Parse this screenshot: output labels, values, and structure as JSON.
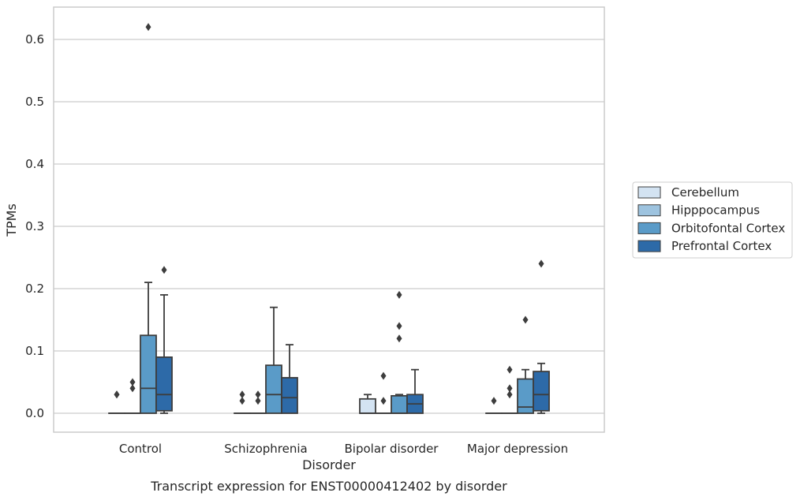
{
  "chart_data": {
    "type": "boxplot",
    "title": "Transcript expression for ENST00000412402 by disorder",
    "xlabel": "Disorder",
    "ylabel": "TPMs",
    "ylim": [
      -0.03,
      0.65
    ],
    "yticks": [
      0.0,
      0.1,
      0.2,
      0.3,
      0.4,
      0.5,
      0.6
    ],
    "ytick_labels": [
      "0.0",
      "0.1",
      "0.2",
      "0.3",
      "0.4",
      "0.5",
      "0.6"
    ],
    "grid": true,
    "legend_position": "right",
    "categories": [
      "Control",
      "Schizophrenia",
      "Bipolar disorder",
      "Major depression"
    ],
    "series": [
      {
        "name": "Cerebellum",
        "color": "#d3e3f2",
        "boxes": [
          {
            "q1": 0,
            "median": 0,
            "q3": 0,
            "whislo": 0,
            "whishi": 0,
            "fliers": [
              0.03,
              0.03
            ]
          },
          {
            "q1": 0,
            "median": 0,
            "q3": 0,
            "whislo": 0,
            "whishi": 0,
            "fliers": [
              0.02,
              0.03
            ]
          },
          {
            "q1": 0,
            "median": 0,
            "q3": 0.023,
            "whislo": 0,
            "whishi": 0.03,
            "fliers": []
          },
          {
            "q1": 0,
            "median": 0,
            "q3": 0,
            "whislo": 0,
            "whishi": 0,
            "fliers": [
              0.02
            ]
          }
        ]
      },
      {
        "name": "Hipppocampus",
        "color": "#9dc3df",
        "boxes": [
          {
            "q1": 0,
            "median": 0,
            "q3": 0,
            "whislo": 0,
            "whishi": 0,
            "fliers": [
              0.04,
              0.05
            ]
          },
          {
            "q1": 0,
            "median": 0,
            "q3": 0,
            "whislo": 0,
            "whishi": 0,
            "fliers": [
              0.02,
              0.03
            ]
          },
          {
            "q1": 0,
            "median": 0,
            "q3": 0,
            "whislo": 0,
            "whishi": 0,
            "fliers": [
              0.02,
              0.06
            ]
          },
          {
            "q1": 0,
            "median": 0,
            "q3": 0,
            "whislo": 0,
            "whishi": 0,
            "fliers": [
              0.03,
              0.04,
              0.07
            ]
          }
        ]
      },
      {
        "name": "Orbitofontal Cortex",
        "color": "#5a9bc8",
        "boxes": [
          {
            "q1": 0,
            "median": 0.04,
            "q3": 0.125,
            "whislo": 0,
            "whishi": 0.21,
            "fliers": [
              0.62
            ]
          },
          {
            "q1": 0,
            "median": 0.03,
            "q3": 0.077,
            "whislo": 0,
            "whishi": 0.17,
            "fliers": []
          },
          {
            "q1": 0,
            "median": 0,
            "q3": 0.028,
            "whislo": 0,
            "whishi": 0.03,
            "fliers": [
              0.12,
              0.14,
              0.19
            ]
          },
          {
            "q1": 0,
            "median": 0.01,
            "q3": 0.055,
            "whislo": 0,
            "whishi": 0.07,
            "fliers": [
              0.15
            ]
          }
        ]
      },
      {
        "name": "Prefrontal Cortex",
        "color": "#2d6aa8",
        "boxes": [
          {
            "q1": 0.004,
            "median": 0.03,
            "q3": 0.09,
            "whislo": 0,
            "whishi": 0.19,
            "fliers": [
              0.23
            ]
          },
          {
            "q1": 0,
            "median": 0.025,
            "q3": 0.057,
            "whislo": 0,
            "whishi": 0.11,
            "fliers": []
          },
          {
            "q1": 0,
            "median": 0.015,
            "q3": 0.03,
            "whislo": 0,
            "whishi": 0.07,
            "fliers": []
          },
          {
            "q1": 0.004,
            "median": 0.03,
            "q3": 0.067,
            "whislo": 0,
            "whishi": 0.08,
            "fliers": [
              0.24
            ]
          }
        ]
      }
    ]
  }
}
